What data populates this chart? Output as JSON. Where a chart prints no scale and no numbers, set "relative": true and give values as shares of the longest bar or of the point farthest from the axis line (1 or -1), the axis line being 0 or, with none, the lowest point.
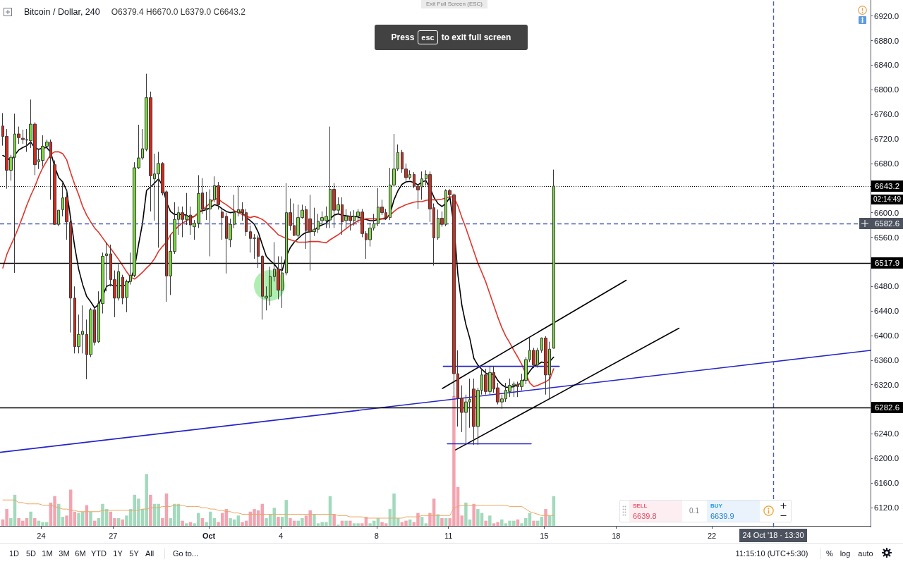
{
  "chart_data": [
    {
      "type": "candlestick",
      "title": "Bitcoin / Dollar, 240",
      "subtitle": "O6379.4 H6670.0 L6379.0 C6643.2",
      "x": [
        "2018-09-22T09:30",
        "2018-09-22T13:30",
        "2018-09-22T17:30",
        "2018-09-22T21:30",
        "2018-09-23T01:30",
        "2018-09-23T05:30",
        "2018-09-23T09:30",
        "2018-09-23T13:30",
        "2018-09-23T17:30",
        "2018-09-23T21:30",
        "2018-09-24T01:30",
        "2018-09-24T05:30",
        "2018-09-24T09:30",
        "2018-09-24T13:30",
        "2018-09-24T17:30",
        "2018-09-24T21:30",
        "2018-09-25T01:30",
        "2018-09-25T05:30",
        "2018-09-25T09:30",
        "2018-09-25T13:30",
        "2018-09-25T17:30",
        "2018-09-25T21:30",
        "2018-09-26T01:30",
        "2018-09-26T05:30",
        "2018-09-26T09:30",
        "2018-09-26T13:30",
        "2018-09-26T17:30",
        "2018-09-26T21:30",
        "2018-09-27T01:30",
        "2018-09-27T05:30",
        "2018-09-27T09:30",
        "2018-09-27T13:30",
        "2018-09-27T17:30",
        "2018-09-27T21:30",
        "2018-09-28T01:30",
        "2018-09-28T05:30",
        "2018-09-28T09:30",
        "2018-09-28T13:30",
        "2018-09-28T17:30",
        "2018-09-28T21:30",
        "2018-09-29T01:30",
        "2018-09-29T05:30",
        "2018-09-29T09:30",
        "2018-09-29T13:30",
        "2018-09-29T17:30",
        "2018-09-29T21:30",
        "2018-09-30T01:30",
        "2018-09-30T05:30",
        "2018-09-30T09:30",
        "2018-09-30T13:30",
        "2018-09-30T17:30",
        "2018-09-30T21:30",
        "2018-10-01T01:30",
        "2018-10-01T05:30",
        "2018-10-01T09:30",
        "2018-10-01T13:30",
        "2018-10-01T17:30",
        "2018-10-01T21:30",
        "2018-10-02T01:30",
        "2018-10-02T05:30",
        "2018-10-02T09:30",
        "2018-10-02T13:30",
        "2018-10-02T17:30",
        "2018-10-02T21:30",
        "2018-10-03T01:30",
        "2018-10-03T05:30",
        "2018-10-03T09:30",
        "2018-10-03T13:30",
        "2018-10-03T17:30",
        "2018-10-03T21:30",
        "2018-10-04T01:30",
        "2018-10-04T05:30",
        "2018-10-04T09:30",
        "2018-10-04T13:30",
        "2018-10-04T17:30",
        "2018-10-04T21:30",
        "2018-10-05T01:30",
        "2018-10-05T05:30",
        "2018-10-05T09:30",
        "2018-10-05T13:30",
        "2018-10-05T17:30",
        "2018-10-05T21:30",
        "2018-10-06T01:30",
        "2018-10-06T05:30",
        "2018-10-06T09:30",
        "2018-10-06T13:30",
        "2018-10-06T17:30",
        "2018-10-06T21:30",
        "2018-10-07T01:30",
        "2018-10-07T05:30",
        "2018-10-07T09:30",
        "2018-10-07T13:30",
        "2018-10-07T17:30",
        "2018-10-07T21:30",
        "2018-10-08T01:30",
        "2018-10-08T05:30",
        "2018-10-08T09:30",
        "2018-10-08T13:30",
        "2018-10-08T17:30",
        "2018-10-08T21:30",
        "2018-10-09T01:30",
        "2018-10-09T05:30",
        "2018-10-09T09:30",
        "2018-10-09T13:30",
        "2018-10-09T17:30",
        "2018-10-09T21:30",
        "2018-10-10T01:30",
        "2018-10-10T05:30",
        "2018-10-10T09:30",
        "2018-10-10T13:30",
        "2018-10-10T17:30",
        "2018-10-10T21:30",
        "2018-10-11T01:30",
        "2018-10-11T05:30",
        "2018-10-11T09:30",
        "2018-10-11T13:30",
        "2018-10-11T17:30",
        "2018-10-11T21:30",
        "2018-10-12T01:30",
        "2018-10-12T05:30",
        "2018-10-12T09:30",
        "2018-10-12T13:30",
        "2018-10-12T17:30",
        "2018-10-12T21:30",
        "2018-10-13T01:30",
        "2018-10-13T05:30",
        "2018-10-13T09:30",
        "2018-10-13T13:30",
        "2018-10-13T17:30",
        "2018-10-13T21:30",
        "2018-10-14T01:30",
        "2018-10-14T05:30",
        "2018-10-14T09:30",
        "2018-10-14T13:30",
        "2018-10-14T17:30",
        "2018-10-14T21:30",
        "2018-10-15T01:30",
        "2018-10-15T05:30",
        "2018-10-15T09:30"
      ],
      "ohlc": [
        [
          6741,
          6762,
          6709,
          6724
        ],
        [
          6724,
          6736,
          6639,
          6669
        ],
        [
          6669,
          6694,
          6652,
          6690
        ],
        [
          6690,
          6761,
          6502,
          6728
        ],
        [
          6728,
          6740,
          6712,
          6722
        ],
        [
          6721,
          6735,
          6712,
          6719
        ],
        [
          6719,
          6736,
          6699,
          6718
        ],
        [
          6717,
          6784,
          6705,
          6744
        ],
        [
          6744,
          6747,
          6661,
          6678
        ],
        [
          6683,
          6703,
          6671,
          6686
        ],
        [
          6685,
          6726,
          6675,
          6708
        ],
        [
          6708,
          6719,
          6706,
          6715
        ],
        [
          6715,
          6719,
          6621,
          6689
        ],
        [
          6678,
          6685,
          6580,
          6581
        ],
        [
          6581,
          6604,
          6578,
          6604
        ],
        [
          6605,
          6648,
          6594,
          6624
        ],
        [
          6625,
          6636,
          6556,
          6585
        ],
        [
          6584,
          6587,
          6405,
          6461
        ],
        [
          6461,
          6480,
          6371,
          6382
        ],
        [
          6382,
          6434,
          6371,
          6402
        ],
        [
          6402,
          6449,
          6371,
          6407
        ],
        [
          6402,
          6426,
          6329,
          6369
        ],
        [
          6369,
          6445,
          6365,
          6442
        ],
        [
          6442,
          6445,
          6384,
          6389
        ],
        [
          6390,
          6472,
          6388,
          6452
        ],
        [
          6452,
          6535,
          6436,
          6529
        ],
        [
          6530,
          6552,
          6472,
          6533
        ],
        [
          6533,
          6548,
          6480,
          6491
        ],
        [
          6491,
          6506,
          6430,
          6461
        ],
        [
          6461,
          6516,
          6457,
          6504
        ],
        [
          6495,
          6499,
          6451,
          6461
        ],
        [
          6462,
          6491,
          6438,
          6488
        ],
        [
          6488,
          6535,
          6483,
          6498
        ],
        [
          6498,
          6682,
          6495,
          6673
        ],
        [
          6673,
          6743,
          6671,
          6689
        ],
        [
          6689,
          6736,
          6686,
          6704
        ],
        [
          6703,
          6826,
          6700,
          6787
        ],
        [
          6787,
          6797,
          6602,
          6660
        ],
        [
          6655,
          6696,
          6587,
          6663
        ],
        [
          6663,
          6699,
          6543,
          6680
        ],
        [
          6680,
          6682,
          6628,
          6632
        ],
        [
          6634,
          6636,
          6455,
          6497
        ],
        [
          6497,
          6564,
          6466,
          6537
        ],
        [
          6537,
          6617,
          6533,
          6589
        ],
        [
          6589,
          6610,
          6564,
          6600
        ],
        [
          6600,
          6610,
          6560,
          6589
        ],
        [
          6589,
          6632,
          6580,
          6595
        ],
        [
          6596,
          6610,
          6564,
          6580
        ],
        [
          6577,
          6588,
          6556,
          6583
        ],
        [
          6583,
          6661,
          6575,
          6631
        ],
        [
          6632,
          6656,
          6598,
          6606
        ],
        [
          6605,
          6634,
          6588,
          6607
        ],
        [
          6606,
          6638,
          6529,
          6621
        ],
        [
          6621,
          6659,
          6617,
          6644
        ],
        [
          6644,
          6650,
          6605,
          6613
        ],
        [
          6601,
          6606,
          6556,
          6592
        ],
        [
          6594,
          6600,
          6501,
          6558
        ],
        [
          6556,
          6590,
          6544,
          6581
        ],
        [
          6581,
          6629,
          6575,
          6600
        ],
        [
          6600,
          6644,
          6594,
          6605
        ],
        [
          6605,
          6617,
          6587,
          6600
        ],
        [
          6600,
          6606,
          6562,
          6569
        ],
        [
          6569,
          6579,
          6535,
          6558
        ],
        [
          6559,
          6565,
          6525,
          6558
        ],
        [
          6559,
          6563,
          6510,
          6529
        ],
        [
          6529,
          6531,
          6426,
          6464
        ],
        [
          6461,
          6480,
          6441,
          6464
        ],
        [
          6464,
          6512,
          6449,
          6496
        ],
        [
          6496,
          6552,
          6488,
          6508
        ],
        [
          6508,
          6529,
          6459,
          6474
        ],
        [
          6474,
          6529,
          6445,
          6502
        ],
        [
          6502,
          6648,
          6498,
          6600
        ],
        [
          6600,
          6623,
          6571,
          6579
        ],
        [
          6579,
          6615,
          6562,
          6563
        ],
        [
          6563,
          6613,
          6560,
          6592
        ],
        [
          6592,
          6613,
          6590,
          6604
        ],
        [
          6605,
          6611,
          6541,
          6571
        ],
        [
          6590,
          6629,
          6506,
          6569
        ],
        [
          6569,
          6608,
          6562,
          6573
        ],
        [
          6573,
          6598,
          6567,
          6586
        ],
        [
          6587,
          6602,
          6579,
          6592
        ],
        [
          6587,
          6610,
          6575,
          6594
        ],
        [
          6588,
          6740,
          6575,
          6638
        ],
        [
          6638,
          6648,
          6575,
          6604
        ],
        [
          6604,
          6625,
          6598,
          6613
        ],
        [
          6613,
          6625,
          6564,
          6585
        ],
        [
          6587,
          6606,
          6575,
          6594
        ],
        [
          6594,
          6602,
          6571,
          6587
        ],
        [
          6587,
          6604,
          6579,
          6594
        ],
        [
          6594,
          6606,
          6583,
          6601
        ],
        [
          6601,
          6606,
          6560,
          6566
        ],
        [
          6566,
          6570,
          6525,
          6556
        ],
        [
          6556,
          6583,
          6545,
          6575
        ],
        [
          6575,
          6598,
          6571,
          6582
        ],
        [
          6582,
          6640,
          6578,
          6609
        ],
        [
          6609,
          6621,
          6596,
          6600
        ],
        [
          6600,
          6606,
          6588,
          6592
        ],
        [
          6592,
          6673,
          6588,
          6645
        ],
        [
          6645,
          6728,
          6642,
          6671
        ],
        [
          6671,
          6711,
          6668,
          6698
        ],
        [
          6698,
          6702,
          6665,
          6671
        ],
        [
          6671,
          6680,
          6652,
          6657
        ],
        [
          6657,
          6669,
          6654,
          6662
        ],
        [
          6662,
          6666,
          6640,
          6643
        ],
        [
          6643,
          6645,
          6606,
          6637
        ],
        [
          6642,
          6667,
          6621,
          6655
        ],
        [
          6655,
          6669,
          6644,
          6662
        ],
        [
          6662,
          6667,
          6585,
          6606
        ],
        [
          6608,
          6615,
          6514,
          6559
        ],
        [
          6559,
          6605,
          6556,
          6591
        ],
        [
          6591,
          6602,
          6577,
          6581
        ],
        [
          6581,
          6638,
          6578,
          6636
        ],
        [
          6636,
          6638,
          6625,
          6629
        ],
        [
          6629,
          6631,
          6300,
          6338
        ],
        [
          6338,
          6376,
          6252,
          6298
        ],
        [
          6298,
          6319,
          6243,
          6275
        ],
        [
          6275,
          6304,
          6224,
          6292
        ],
        [
          6292,
          6330,
          6250,
          6296
        ],
        [
          6313,
          6330,
          6222,
          6252
        ],
        [
          6252,
          6315,
          6222,
          6311
        ],
        [
          6311,
          6346,
          6304,
          6336
        ],
        [
          6336,
          6346,
          6304,
          6309
        ],
        [
          6309,
          6350,
          6304,
          6340
        ],
        [
          6340,
          6350,
          6307,
          6313
        ],
        [
          6315,
          6323,
          6288,
          6292
        ],
        [
          6292,
          6304,
          6281,
          6297
        ],
        [
          6297,
          6323,
          6292,
          6311
        ],
        [
          6309,
          6330,
          6300,
          6319
        ],
        [
          6319,
          6325,
          6300,
          6321
        ],
        [
          6321,
          6325,
          6300,
          6317
        ],
        [
          6317,
          6338,
          6311,
          6327
        ],
        [
          6327,
          6365,
          6321,
          6361
        ],
        [
          6361,
          6397,
          6357,
          6376
        ],
        [
          6376,
          6380,
          6347,
          6352
        ],
        [
          6352,
          6380,
          6348,
          6376
        ],
        [
          6376,
          6397,
          6372,
          6396
        ],
        [
          6396,
          6399,
          6304,
          6336
        ],
        [
          6336,
          6390,
          6296,
          6378
        ],
        [
          6379.4,
          6670.0,
          6379.0,
          6643.2
        ]
      ],
      "colors": [
        "#d32a1c",
        "#d32a1c",
        "#7ada3e",
        "#7ada3e",
        "#d32a1c",
        "#d32a1c",
        "#d32a1c",
        "#7ada3e",
        "#d32a1c",
        "#7ada3e",
        "#7ada3e",
        "#7ada3e",
        "#d32a1c",
        "#d32a1c",
        "#7ada3e",
        "#7ada3e",
        "#d32a1c",
        "#d32a1c",
        "#d32a1c",
        "#7ada3e",
        "#7ada3e",
        "#d32a1c",
        "#7ada3e",
        "#d32a1c",
        "#7ada3e",
        "#7ada3e",
        "#7ada3e",
        "#d32a1c",
        "#d32a1c",
        "#7ada3e",
        "#d32a1c",
        "#7ada3e",
        "#7ada3e",
        "#7ada3e",
        "#7ada3e",
        "#7ada3e",
        "#7ada3e",
        "#d32a1c",
        "#7ada3e",
        "#7ada3e",
        "#d32a1c",
        "#d32a1c",
        "#7ada3e",
        "#7ada3e",
        "#7ada3e",
        "#d32a1c",
        "#7ada3e",
        "#d32a1c",
        "#7ada3e",
        "#7ada3e",
        "#d32a1c",
        "#7ada3e",
        "#7ada3e",
        "#7ada3e",
        "#d32a1c",
        "#d32a1c",
        "#d32a1c",
        "#7ada3e",
        "#7ada3e",
        "#7ada3e",
        "#d32a1c",
        "#d32a1c",
        "#d32a1c",
        "#d32a1c",
        "#d32a1c",
        "#d32a1c",
        "#7ada3e",
        "#7ada3e",
        "#7ada3e",
        "#d32a1c",
        "#7ada3e",
        "#7ada3e",
        "#d32a1c",
        "#d32a1c",
        "#7ada3e",
        "#7ada3e",
        "#d32a1c",
        "#d32a1c",
        "#7ada3e",
        "#7ada3e",
        "#7ada3e",
        "#7ada3e",
        "#7ada3e",
        "#d32a1c",
        "#7ada3e",
        "#d32a1c",
        "#7ada3e",
        "#d32a1c",
        "#7ada3e",
        "#7ada3e",
        "#d32a1c",
        "#d32a1c",
        "#7ada3e",
        "#7ada3e",
        "#7ada3e",
        "#d32a1c",
        "#d32a1c",
        "#7ada3e",
        "#7ada3e",
        "#7ada3e",
        "#d32a1c",
        "#d32a1c",
        "#7ada3e",
        "#d32a1c",
        "#d32a1c",
        "#7ada3e",
        "#7ada3e",
        "#d32a1c",
        "#d32a1c",
        "#7ada3e",
        "#d32a1c",
        "#7ada3e",
        "#d32a1c",
        "#d32a1c",
        "#d32a1c",
        "#d32a1c",
        "#7ada3e",
        "#7ada3e",
        "#d32a1c",
        "#7ada3e",
        "#7ada3e",
        "#d32a1c",
        "#7ada3e",
        "#d32a1c",
        "#d32a1c",
        "#7ada3e",
        "#7ada3e",
        "#7ada3e",
        "#7ada3e",
        "#d32a1c",
        "#7ada3e",
        "#7ada3e",
        "#7ada3e",
        "#d32a1c",
        "#7ada3e",
        "#7ada3e",
        "#d32a1c",
        "#7ada3e",
        "#7ada3e"
      ],
      "series": [
        {
          "type": "line",
          "color": "#000000",
          "values": [
            6693,
            6690,
            6684,
            6694,
            6702,
            6706,
            6709,
            6715,
            6705,
            6703,
            6705,
            6706,
            6698,
            6675,
            6657,
            6650,
            6636,
            6590,
            6545,
            6508,
            6483,
            6464,
            6455,
            6445,
            6451,
            6464,
            6480,
            6483,
            6480,
            6482,
            6480,
            6483,
            6491,
            6510,
            6548,
            6583,
            6636,
            6642,
            6648,
            6655,
            6644,
            6617,
            6602,
            6597,
            6597,
            6597,
            6596,
            6592,
            6594,
            6600,
            6603,
            6605,
            6608,
            6613,
            6611,
            6606,
            6602,
            6600,
            6601,
            6602,
            6600,
            6592,
            6587,
            6581,
            6568,
            6548,
            6529,
            6522,
            6516,
            6508,
            6506,
            6529,
            6543,
            6552,
            6558,
            6564,
            6568,
            6569,
            6571,
            6577,
            6580,
            6583,
            6590,
            6596,
            6598,
            6596,
            6595,
            6594,
            6594,
            6593,
            6590,
            6589,
            6587,
            6587,
            6589,
            6590,
            6590,
            6598,
            6621,
            6636,
            6646,
            6650,
            6651,
            6649,
            6645,
            6650,
            6652,
            6640,
            6625,
            6615,
            6610,
            6615,
            6625,
            6579,
            6499,
            6449,
            6418,
            6395,
            6363,
            6352,
            6345,
            6339,
            6336,
            6338,
            6327,
            6320,
            6316,
            6316,
            6317,
            6320,
            6323,
            6332,
            6342,
            6350,
            6353,
            6357,
            6355,
            6358,
            6365
          ]
        },
        {
          "type": "line",
          "color": "#e0352b",
          "values": [
            6510,
            6532,
            6547,
            6561,
            6577,
            6594,
            6612,
            6628,
            6642,
            6659,
            6673,
            6684,
            6695,
            6699,
            6699,
            6696,
            6686,
            6665,
            6646,
            6629,
            6610,
            6596,
            6585,
            6575,
            6568,
            6559,
            6550,
            6542,
            6533,
            6524,
            6514,
            6504,
            6495,
            6492,
            6497,
            6503,
            6510,
            6516,
            6525,
            6537,
            6545,
            6552,
            6564,
            6571,
            6578,
            6583,
            6587,
            6590,
            6594,
            6600,
            6605,
            6610,
            6616,
            6623,
            6622,
            6617,
            6613,
            6608,
            6603,
            6600,
            6597,
            6594,
            6592,
            6594,
            6592,
            6589,
            6584,
            6577,
            6571,
            6564,
            6561,
            6558,
            6556,
            6554,
            6552,
            6552,
            6552,
            6553,
            6553,
            6553,
            6552,
            6551,
            6556,
            6560,
            6564,
            6569,
            6574,
            6579,
            6583,
            6587,
            6589,
            6590,
            6590,
            6590,
            6590,
            6590,
            6592,
            6596,
            6602,
            6607,
            6610,
            6613,
            6615,
            6617,
            6618,
            6618,
            6620,
            6621,
            6621,
            6621,
            6622,
            6624,
            6626,
            6625,
            6611,
            6592,
            6575,
            6556,
            6537,
            6518,
            6503,
            6487,
            6468,
            6449,
            6430,
            6413,
            6399,
            6388,
            6376,
            6365,
            6353,
            null,
            6323,
            6317,
            6319,
            6322,
            6325,
            6329,
            6346
          ]
        },
        {
          "type": "line",
          "color": "#2424c8",
          "x": [
            "2018-09-22T06:40",
            "2018-10-28T15:00"
          ],
          "values": [
            6210,
            6376
          ]
        },
        {
          "type": "line",
          "color": "#000000",
          "x": [
            "2018-10-10T18:00",
            "2018-10-18T10:10"
          ],
          "values": [
            6314,
            6490
          ]
        },
        {
          "type": "line",
          "color": "#000000",
          "x": [
            "2018-10-11T07:10",
            "2018-10-20T15:05"
          ],
          "values": [
            6214,
            6412
          ]
        },
        {
          "type": "line",
          "color": "#2424c8",
          "x": [
            "2018-10-10T18:55",
            "2018-10-15T15:05"
          ],
          "values": [
            6350,
            6350
          ]
        },
        {
          "type": "line",
          "color": "#2424c8",
          "x": [
            "2018-10-10T22:55",
            "2018-10-14T10:55"
          ],
          "values": [
            6224,
            6224
          ]
        }
      ],
      "xlim": [
        "2018-09-22T06:40",
        "2018-10-28T15:00"
      ],
      "ylim": [
        6088,
        6946
      ],
      "yticks": [
        {
          "value": 6120,
          "label": "6120.0"
        },
        {
          "value": 6160,
          "label": "6160.0"
        },
        {
          "value": 6200,
          "label": "6200.0"
        },
        {
          "value": 6240,
          "label": "6240.0"
        },
        {
          "value": 6320,
          "label": "6320.0"
        },
        {
          "value": 6360,
          "label": "6360.0"
        },
        {
          "value": 6400,
          "label": "6400.0"
        },
        {
          "value": 6440,
          "label": "6440.0"
        },
        {
          "value": 6480,
          "label": "6480.0"
        },
        {
          "value": 6560,
          "label": "6560.0"
        },
        {
          "value": 6600,
          "label": "6600.0"
        },
        {
          "value": 6680,
          "label": "6680.0"
        },
        {
          "value": 6720,
          "label": "6720.0"
        },
        {
          "value": 6760,
          "label": "6760.0"
        },
        {
          "value": 6800,
          "label": "6800.0"
        },
        {
          "value": 6840,
          "label": "6840.0"
        },
        {
          "value": 6880,
          "label": "6880.0"
        },
        {
          "value": 6920,
          "label": "6920.0"
        }
      ],
      "tick_labels": "y",
      "ref_lines": [
        {
          "axis": "y",
          "value": 6643.2,
          "label": "6643.2",
          "line_style": "dotted",
          "color": "#000000"
        },
        {
          "axis": "y",
          "value": 6582.6,
          "label": "6582.6",
          "line_style": "dashed",
          "color": "#4a5bc4"
        },
        {
          "axis": "y",
          "value": 6517.9,
          "label": "6517.9",
          "color": "#000000"
        },
        {
          "axis": "y",
          "value": 6282.6,
          "label": "6282.6",
          "color": "#000000"
        },
        {
          "axis": "x",
          "value": "2018-10-24T13:30",
          "label": "24 Oct '18 · 13:30",
          "line_style": "dashed",
          "color": "#4a5bc4"
        }
      ],
      "annotations": [
        "02:14:49",
        "Exit Full Screen (ESC)",
        "Press",
        "esc",
        "to exit full screen",
        "1D",
        "5D",
        "1M",
        "3M",
        "6M",
        "YTD",
        "1Y",
        "5Y",
        "All",
        "Go to...",
        "11:15:10 (UTC+5:30)",
        "%",
        "log",
        "auto",
        "SELL",
        "6639.8",
        "0.1",
        "BUY",
        "6639.9"
      ]
    },
    {
      "type": "bar",
      "relative": true,
      "x": [
        "2018-09-22T09:30",
        "2018-09-22T13:30",
        "2018-09-22T17:30",
        "2018-09-22T21:30",
        "2018-09-23T01:30",
        "2018-09-23T05:30",
        "2018-09-23T09:30",
        "2018-09-23T13:30",
        "2018-09-23T17:30",
        "2018-09-23T21:30",
        "2018-09-24T01:30",
        "2018-09-24T05:30",
        "2018-09-24T09:30",
        "2018-09-24T13:30",
        "2018-09-24T17:30",
        "2018-09-24T21:30",
        "2018-09-25T01:30",
        "2018-09-25T05:30",
        "2018-09-25T09:30",
        "2018-09-25T13:30",
        "2018-09-25T17:30",
        "2018-09-25T21:30",
        "2018-09-26T01:30",
        "2018-09-26T05:30",
        "2018-09-26T09:30",
        "2018-09-26T13:30",
        "2018-09-26T17:30",
        "2018-09-26T21:30",
        "2018-09-27T01:30",
        "2018-09-27T05:30",
        "2018-09-27T09:30",
        "2018-09-27T13:30",
        "2018-09-27T17:30",
        "2018-09-27T21:30",
        "2018-09-28T01:30",
        "2018-09-28T05:30",
        "2018-09-28T09:30",
        "2018-09-28T13:30",
        "2018-09-28T17:30",
        "2018-09-28T21:30",
        "2018-09-29T01:30",
        "2018-09-29T05:30",
        "2018-09-29T09:30",
        "2018-09-29T13:30",
        "2018-09-29T17:30",
        "2018-09-29T21:30",
        "2018-09-30T01:30",
        "2018-09-30T05:30",
        "2018-09-30T09:30",
        "2018-09-30T13:30",
        "2018-09-30T17:30",
        "2018-09-30T21:30",
        "2018-10-01T01:30",
        "2018-10-01T05:30",
        "2018-10-01T09:30",
        "2018-10-01T13:30",
        "2018-10-01T17:30",
        "2018-10-01T21:30",
        "2018-10-02T01:30",
        "2018-10-02T05:30",
        "2018-10-02T09:30",
        "2018-10-02T13:30",
        "2018-10-02T17:30",
        "2018-10-02T21:30",
        "2018-10-03T01:30",
        "2018-10-03T05:30",
        "2018-10-03T09:30",
        "2018-10-03T13:30",
        "2018-10-03T17:30",
        "2018-10-03T21:30",
        "2018-10-04T01:30",
        "2018-10-04T05:30",
        "2018-10-04T09:30",
        "2018-10-04T13:30",
        "2018-10-04T17:30",
        "2018-10-04T21:30",
        "2018-10-05T01:30",
        "2018-10-05T05:30",
        "2018-10-05T09:30",
        "2018-10-05T13:30",
        "2018-10-05T17:30",
        "2018-10-05T21:30",
        "2018-10-06T01:30",
        "2018-10-06T05:30",
        "2018-10-06T09:30",
        "2018-10-06T13:30",
        "2018-10-06T17:30",
        "2018-10-06T21:30",
        "2018-10-07T01:30",
        "2018-10-07T05:30",
        "2018-10-07T09:30",
        "2018-10-07T13:30",
        "2018-10-07T17:30",
        "2018-10-07T21:30",
        "2018-10-08T01:30",
        "2018-10-08T05:30",
        "2018-10-08T09:30",
        "2018-10-08T13:30",
        "2018-10-08T17:30",
        "2018-10-08T21:30",
        "2018-10-09T01:30",
        "2018-10-09T05:30",
        "2018-10-09T09:30",
        "2018-10-09T13:30",
        "2018-10-09T17:30",
        "2018-10-09T21:30",
        "2018-10-10T01:30",
        "2018-10-10T05:30",
        "2018-10-10T09:30",
        "2018-10-10T13:30",
        "2018-10-10T17:30",
        "2018-10-10T21:30",
        "2018-10-11T01:30",
        "2018-10-11T05:30",
        "2018-10-11T09:30",
        "2018-10-11T13:30",
        "2018-10-11T17:30",
        "2018-10-11T21:30",
        "2018-10-12T01:30",
        "2018-10-12T05:30",
        "2018-10-12T09:30",
        "2018-10-12T13:30",
        "2018-10-12T17:30",
        "2018-10-12T21:30",
        "2018-10-13T01:30",
        "2018-10-13T05:30",
        "2018-10-13T09:30",
        "2018-10-13T13:30",
        "2018-10-13T17:30",
        "2018-10-13T21:30",
        "2018-10-14T01:30",
        "2018-10-14T05:30",
        "2018-10-14T09:30",
        "2018-10-14T13:30",
        "2018-10-14T17:30",
        "2018-10-14T21:30",
        "2018-10-15T01:30",
        "2018-10-15T05:30",
        "2018-10-15T09:30"
      ],
      "values": [
        0.05,
        0.13,
        0.06,
        0.24,
        0.06,
        0.04,
        0.06,
        0.11,
        0.06,
        0.04,
        0.03,
        0.03,
        0.18,
        0.23,
        0.17,
        0.07,
        0.08,
        0.28,
        0.11,
        0.1,
        0.11,
        0.16,
        0.11,
        0.04,
        0.06,
        0.17,
        0.13,
        0.11,
        0.06,
        0.06,
        0.05,
        0.08,
        0.13,
        0.24,
        0.21,
        0.13,
        0.4,
        0.24,
        0.17,
        0.17,
        0.06,
        0.25,
        0.06,
        0.17,
        0.17,
        0.04,
        0.02,
        0.03,
        0.02,
        0.1,
        0.06,
        0.03,
        0.11,
        0.06,
        0.03,
        0.1,
        0.13,
        0.06,
        0.05,
        0.08,
        0.03,
        0.04,
        0.11,
        0.13,
        0.12,
        0.17,
        0.06,
        0.09,
        0.14,
        0.07,
        0.07,
        0.2,
        0.06,
        0.04,
        0.04,
        0.06,
        0.08,
        0.12,
        0.09,
        0.02,
        0.03,
        0.03,
        0.23,
        0.09,
        0.01,
        0.04,
        0.04,
        0.04,
        0.02,
        0.02,
        0.02,
        0.07,
        0.02,
        0.04,
        0.06,
        0.03,
        0.02,
        0.13,
        0.25,
        0.06,
        0.03,
        0.04,
        0.05,
        0.03,
        0.1,
        0.07,
        0.02,
        0.1,
        0.21,
        0.09,
        0.06,
        0.06,
        0.06,
        1,
        0.3,
        0.08,
        0.18,
        0.05,
        0.17,
        0.13,
        0.1,
        0.04,
        0.08,
        0.02,
        0.03,
        0.05,
        0.02,
        0.04,
        0.04,
        0.05,
        0.02,
        0.06,
        0.1,
        0.04,
        0.04,
        0.07,
        0.13,
        0.08,
        0.23
      ],
      "colors": [
        "#f2a4b0",
        "#f2a4b0",
        "#a3d9bc",
        "#a3d9bc",
        "#f2a4b0",
        "#f2a4b0",
        "#f2a4b0",
        "#a3d9bc",
        "#f2a4b0",
        "#a3d9bc",
        "#a3d9bc",
        "#a3d9bc",
        "#f2a4b0",
        "#f2a4b0",
        "#a3d9bc",
        "#a3d9bc",
        "#f2a4b0",
        "#f2a4b0",
        "#f2a4b0",
        "#a3d9bc",
        "#a3d9bc",
        "#f2a4b0",
        "#a3d9bc",
        "#f2a4b0",
        "#a3d9bc",
        "#a3d9bc",
        "#a3d9bc",
        "#f2a4b0",
        "#f2a4b0",
        "#a3d9bc",
        "#f2a4b0",
        "#a3d9bc",
        "#a3d9bc",
        "#a3d9bc",
        "#a3d9bc",
        "#a3d9bc",
        "#a3d9bc",
        "#f2a4b0",
        "#a3d9bc",
        "#a3d9bc",
        "#f2a4b0",
        "#f2a4b0",
        "#a3d9bc",
        "#a3d9bc",
        "#a3d9bc",
        "#f2a4b0",
        "#a3d9bc",
        "#f2a4b0",
        "#a3d9bc",
        "#a3d9bc",
        "#f2a4b0",
        "#a3d9bc",
        "#a3d9bc",
        "#a3d9bc",
        "#f2a4b0",
        "#f2a4b0",
        "#f2a4b0",
        "#a3d9bc",
        "#a3d9bc",
        "#a3d9bc",
        "#f2a4b0",
        "#f2a4b0",
        "#f2a4b0",
        "#f2a4b0",
        "#f2a4b0",
        "#f2a4b0",
        "#a3d9bc",
        "#a3d9bc",
        "#a3d9bc",
        "#f2a4b0",
        "#a3d9bc",
        "#a3d9bc",
        "#f2a4b0",
        "#f2a4b0",
        "#a3d9bc",
        "#a3d9bc",
        "#f2a4b0",
        "#f2a4b0",
        "#a3d9bc",
        "#a3d9bc",
        "#a3d9bc",
        "#a3d9bc",
        "#a3d9bc",
        "#f2a4b0",
        "#a3d9bc",
        "#f2a4b0",
        "#a3d9bc",
        "#f2a4b0",
        "#a3d9bc",
        "#a3d9bc",
        "#f2a4b0",
        "#f2a4b0",
        "#a3d9bc",
        "#a3d9bc",
        "#a3d9bc",
        "#f2a4b0",
        "#f2a4b0",
        "#a3d9bc",
        "#a3d9bc",
        "#a3d9bc",
        "#f2a4b0",
        "#f2a4b0",
        "#a3d9bc",
        "#f2a4b0",
        "#f2a4b0",
        "#a3d9bc",
        "#a3d9bc",
        "#f2a4b0",
        "#f2a4b0",
        "#a3d9bc",
        "#f2a4b0",
        "#a3d9bc",
        "#f2a4b0",
        "#f2a4b0",
        "#f2a4b0",
        "#f2a4b0",
        "#a3d9bc",
        "#a3d9bc",
        "#f2a4b0",
        "#a3d9bc",
        "#a3d9bc",
        "#f2a4b0",
        "#a3d9bc",
        "#f2a4b0",
        "#f2a4b0",
        "#a3d9bc",
        "#a3d9bc",
        "#a3d9bc",
        "#a3d9bc",
        "#f2a4b0",
        "#a3d9bc",
        "#a3d9bc",
        "#a3d9bc",
        "#f2a4b0",
        "#a3d9bc",
        "#a3d9bc",
        "#f2a4b0",
        "#a3d9bc",
        "#a3d9bc"
      ],
      "series": [
        {
          "type": "line",
          "color": "#eea45e",
          "values": [
            0.2,
            0.2,
            0.2,
            0.2,
            0.18,
            0.18,
            0.17,
            0.17,
            0.17,
            0.17,
            0.16,
            0.16,
            0.16,
            0.15,
            0.14,
            0.13,
            0.13,
            0.12,
            0.12,
            0.11,
            0.11,
            0.11,
            0.11,
            0.11,
            0.11,
            0.12,
            0.12,
            0.12,
            0.12,
            0.12,
            0.12,
            0.12,
            0.12,
            0.12,
            0.12,
            0.13,
            0.13,
            0.14,
            0.14,
            0.14,
            0.15,
            0.15,
            0.15,
            0.16,
            0.16,
            0.16,
            0.15,
            0.15,
            0.15,
            0.15,
            0.14,
            0.14,
            0.13,
            0.13,
            0.12,
            0.12,
            0.11,
            0.11,
            0.1,
            0.1,
            0.09,
            0.09,
            0.09,
            0.09,
            0.09,
            0.09,
            0.09,
            0.09,
            0.09,
            0.09,
            0.09,
            0.09,
            0.09,
            0.09,
            0.09,
            0.09,
            0.09,
            0.09,
            0.09,
            0.09,
            0.09,
            0.09,
            0.09,
            0.09,
            0.08,
            0.08,
            0.08,
            0.07,
            0.07,
            0.07,
            0.07,
            0.06,
            0.06,
            0.06,
            0.06,
            0.06,
            0.06,
            0.06,
            0.06,
            0.06,
            0.06,
            0.07,
            0.07,
            0.07,
            0.07,
            0.08,
            0.08,
            0.08,
            0.08,
            0.08,
            0.08,
            0.08,
            0.08,
            0.14,
            0.15,
            0.16,
            0.16,
            0.16,
            0.16,
            0.16,
            0.16,
            0.16,
            0.16,
            0.16,
            0.16,
            0.16,
            0.16,
            0.15,
            0.15,
            0.15,
            0.15,
            0.13,
            0.11,
            0.1,
            0.09,
            0.08,
            0.08,
            0.08,
            0.08
          ]
        }
      ],
      "xlim": [
        "2018-09-22T06:40",
        "2018-10-28T15:00"
      ],
      "xticks": [
        {
          "value": "2018-09-24",
          "label": "24"
        },
        {
          "value": "2018-09-27",
          "label": "27"
        },
        {
          "value": "2018-10-01",
          "label": "Oct"
        },
        {
          "value": "2018-10-04",
          "label": "4"
        },
        {
          "value": "2018-10-08",
          "label": "8"
        },
        {
          "value": "2018-10-11",
          "label": "11"
        },
        {
          "value": "2018-10-15",
          "label": "15"
        },
        {
          "value": "2018-10-18",
          "label": "18"
        },
        {
          "value": "2018-10-22",
          "label": "22"
        }
      ],
      "tick_labels": "x"
    }
  ]
}
